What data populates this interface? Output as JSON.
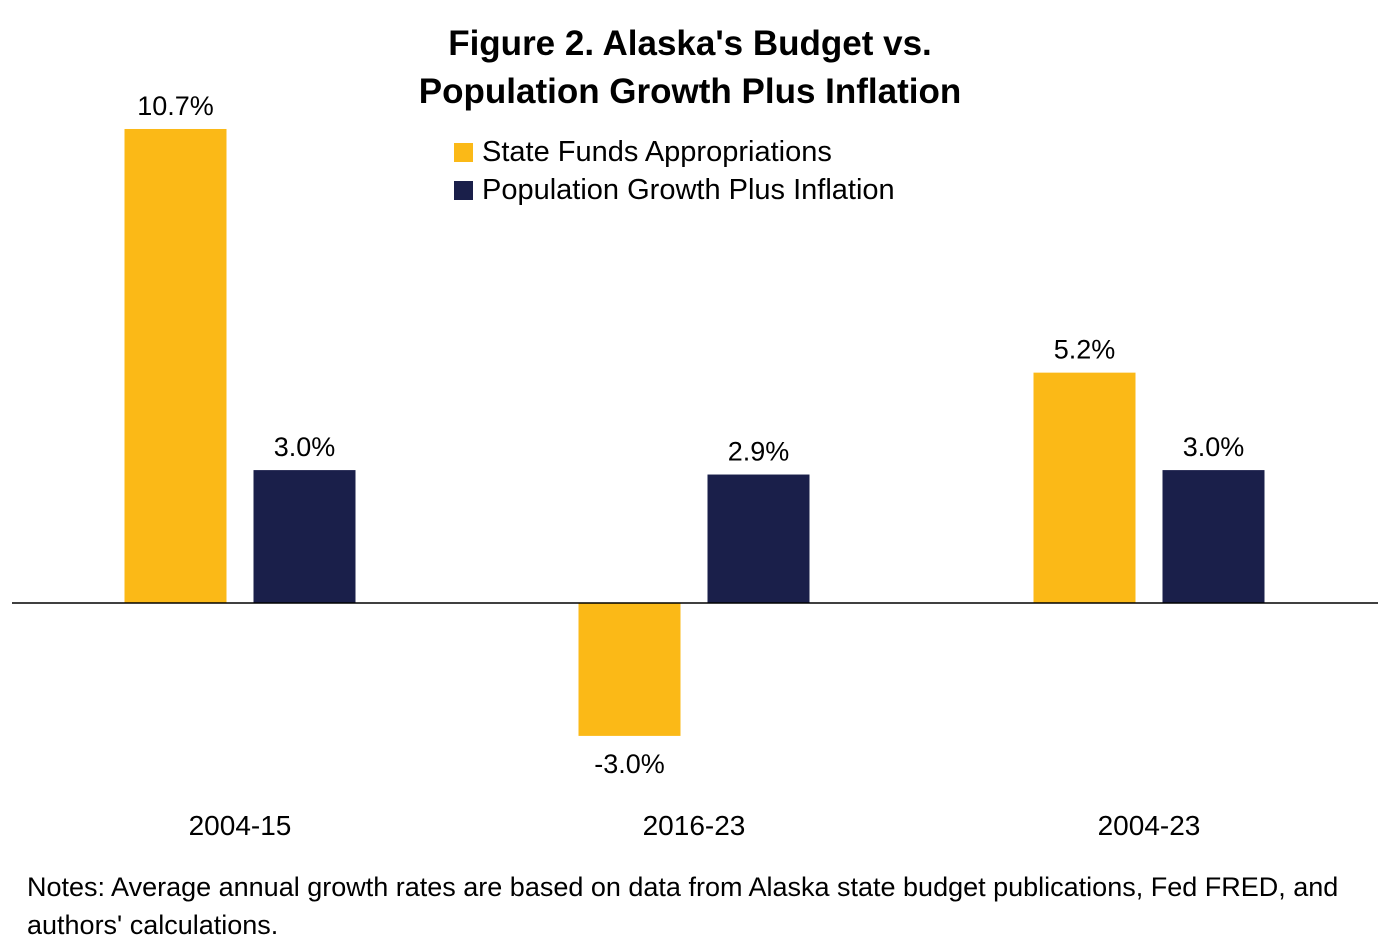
{
  "chart_data": {
    "type": "bar",
    "title": "Figure 2. Alaska's Budget vs. Population Growth Plus Inflation",
    "title_lines": [
      "Figure 2. Alaska's Budget vs.",
      "Population Growth Plus Inflation"
    ],
    "categories": [
      "2004-15",
      "2016-23",
      "2004-23"
    ],
    "series": [
      {
        "name": "State Funds Appropriations",
        "color": "#FBB917",
        "values": [
          10.7,
          -3.0,
          5.2
        ],
        "labels": [
          "10.7%",
          "-3.0%",
          "5.2%"
        ]
      },
      {
        "name": "Population Growth Plus Inflation",
        "color": "#1A1F4A",
        "values": [
          3.0,
          2.9,
          3.0
        ],
        "labels": [
          "3.0%",
          "2.9%",
          "3.0%"
        ]
      }
    ],
    "ylim": [
      -4.5,
      11
    ],
    "grid": false,
    "legend_position": "top-center",
    "xlabel": "",
    "ylabel": ""
  },
  "notes": "Notes: Average annual growth rates are based on data from Alaska state budget publications, Fed FRED, and authors' calculations."
}
